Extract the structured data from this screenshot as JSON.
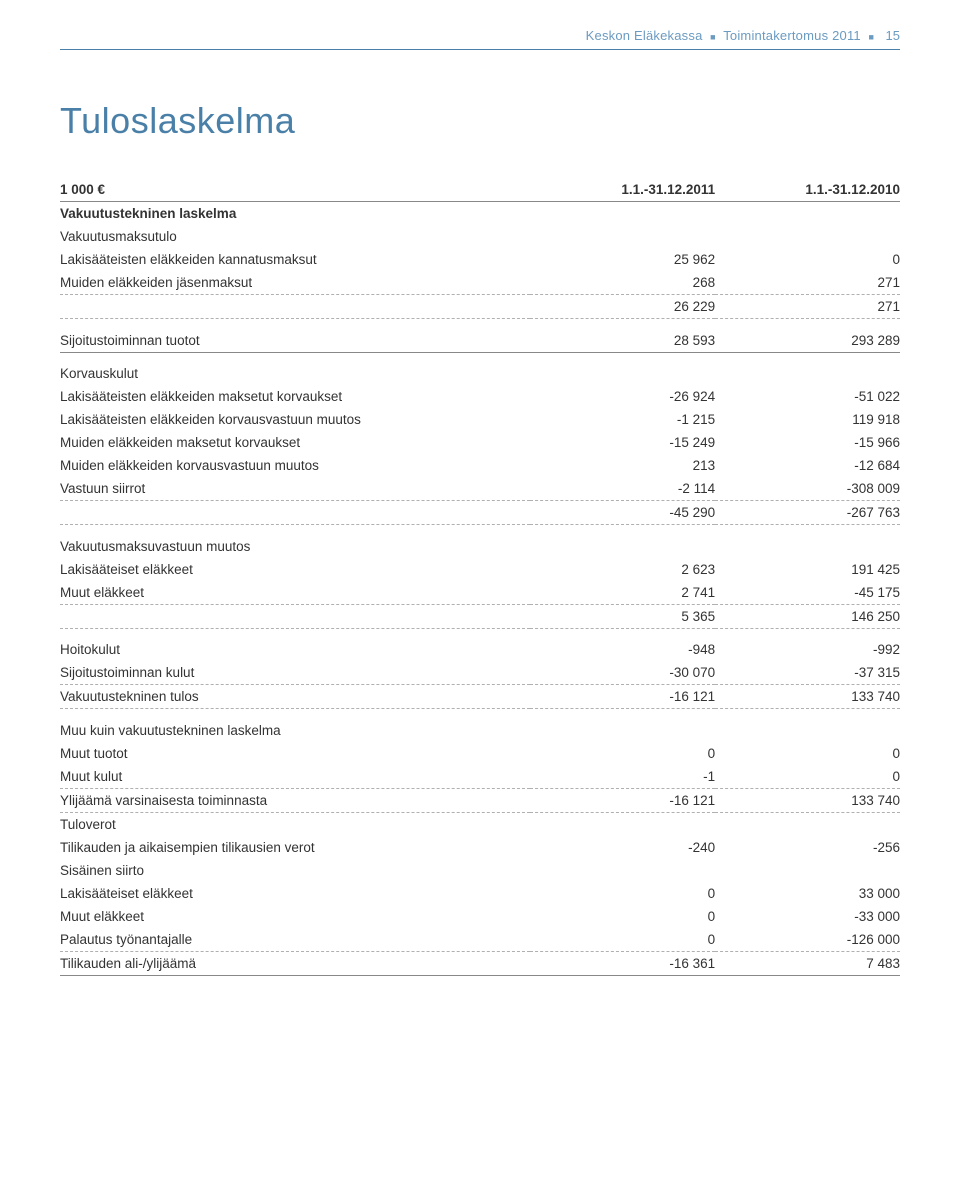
{
  "header": {
    "brand": "Keskon Eläkekassa",
    "report": "Toimintakertomus 2011",
    "page": "15"
  },
  "title": "Tuloslaskelma",
  "columns": {
    "unit": "1 000 €",
    "col1": "1.1.-31.12.2011",
    "col2": "1.1.-31.12.2010"
  },
  "sections": [
    {
      "type": "heading",
      "label": "Vakuutustekninen laskelma"
    },
    {
      "type": "sub",
      "label": "Vakuutusmaksutulo"
    },
    {
      "type": "row",
      "indent": true,
      "label": "Lakisääteisten eläkkeiden kannatusmaksut",
      "v1": "25 962",
      "v2": "0"
    },
    {
      "type": "row",
      "indent": true,
      "dashed": true,
      "label": "Muiden eläkkeiden jäsenmaksut",
      "v1": "268",
      "v2": "271"
    },
    {
      "type": "row",
      "indent": true,
      "dashed": true,
      "label": "",
      "v1": "26 229",
      "v2": "271"
    },
    {
      "type": "spacer"
    },
    {
      "type": "row",
      "solid": true,
      "label": "Sijoitustoiminnan tuotot",
      "v1": "28 593",
      "v2": "293 289"
    },
    {
      "type": "spacer"
    },
    {
      "type": "sub",
      "label": "Korvauskulut"
    },
    {
      "type": "row",
      "indent": true,
      "label": "Lakisääteisten eläkkeiden maksetut korvaukset",
      "v1": "-26 924",
      "v2": "-51 022"
    },
    {
      "type": "row",
      "indent": true,
      "label": "Lakisääteisten eläkkeiden korvausvastuun muutos",
      "v1": "-1 215",
      "v2": "119 918"
    },
    {
      "type": "row",
      "indent": true,
      "label": "Muiden eläkkeiden maksetut korvaukset",
      "v1": "-15 249",
      "v2": "-15 966"
    },
    {
      "type": "row",
      "indent": true,
      "label": "Muiden eläkkeiden korvausvastuun muutos",
      "v1": "213",
      "v2": "-12 684"
    },
    {
      "type": "row",
      "indent": true,
      "dashed": true,
      "label": "Vastuun siirrot",
      "v1": "-2 114",
      "v2": "-308 009"
    },
    {
      "type": "row",
      "indent": true,
      "dashed": true,
      "label": "",
      "v1": "-45 290",
      "v2": "-267 763"
    },
    {
      "type": "spacer"
    },
    {
      "type": "sub",
      "label": "Vakuutusmaksuvastuun muutos"
    },
    {
      "type": "row",
      "indent": true,
      "label": "Lakisääteiset eläkkeet",
      "v1": "2 623",
      "v2": "191 425"
    },
    {
      "type": "row",
      "indent": true,
      "dashed": true,
      "label": "Muut eläkkeet",
      "v1": "2 741",
      "v2": "-45 175"
    },
    {
      "type": "row",
      "indent": true,
      "dashed": true,
      "label": "",
      "v1": "5 365",
      "v2": "146 250"
    },
    {
      "type": "spacer"
    },
    {
      "type": "row",
      "label": "Hoitokulut",
      "v1": "-948",
      "v2": "-992"
    },
    {
      "type": "row",
      "dashed": true,
      "label": "Sijoitustoiminnan kulut",
      "v1": "-30 070",
      "v2": "-37 315"
    },
    {
      "type": "row",
      "dashed": true,
      "label": "Vakuutustekninen tulos",
      "v1": "-16 121",
      "v2": "133 740"
    },
    {
      "type": "spacer"
    },
    {
      "type": "sub",
      "label": "Muu kuin vakuutustekninen laskelma"
    },
    {
      "type": "row",
      "label": "Muut tuotot",
      "v1": "0",
      "v2": "0"
    },
    {
      "type": "row",
      "dashed": true,
      "label": "Muut kulut",
      "v1": "-1",
      "v2": "0"
    },
    {
      "type": "row",
      "dashed": true,
      "label": "Ylijäämä varsinaisesta toiminnasta",
      "v1": "-16 121",
      "v2": "133 740"
    },
    {
      "type": "subplain",
      "label": "Tuloverot"
    },
    {
      "type": "row",
      "indent": true,
      "label": "Tilikauden ja aikaisempien tilikausien verot",
      "v1": "-240",
      "v2": "-256"
    },
    {
      "type": "subplain",
      "label": "Sisäinen siirto"
    },
    {
      "type": "row",
      "indent": true,
      "label": "Lakisääteiset eläkkeet",
      "v1": "0",
      "v2": "33 000"
    },
    {
      "type": "row",
      "indent": true,
      "label": "Muut eläkkeet",
      "v1": "0",
      "v2": "-33 000"
    },
    {
      "type": "row",
      "indent": true,
      "dashed": true,
      "label": "Palautus työnantajalle",
      "v1": "0",
      "v2": "-126 000"
    },
    {
      "type": "row",
      "solid": true,
      "label": "Tilikauden ali-/ylijäämä",
      "v1": "-16 361",
      "v2": "7 483"
    }
  ]
}
